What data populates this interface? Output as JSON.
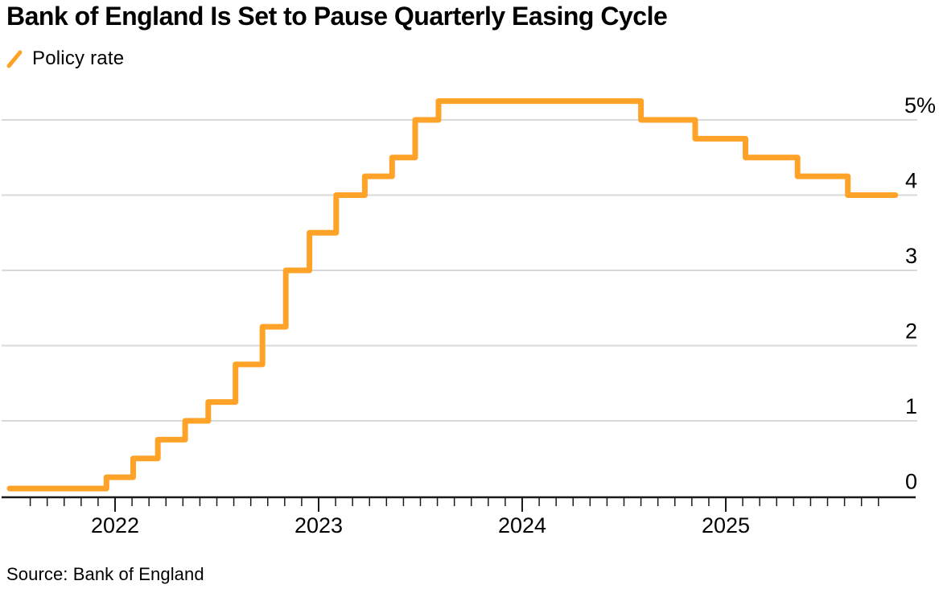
{
  "title": "Bank of England Is Set to Pause Quarterly Easing Cycle",
  "legend": {
    "label": "Policy rate"
  },
  "source": "Source: Bank of England",
  "colors": {
    "line": "#FFA228",
    "grid": "#D9D9D9",
    "axis": "#1A1A1A",
    "text": "#000000"
  },
  "chart_data": {
    "type": "line",
    "style": "step-after",
    "title": "Bank of England Is Set to Pause Quarterly Easing Cycle",
    "xlabel": "",
    "ylabel": "",
    "unit": "%",
    "ylim": [
      0,
      5.5
    ],
    "grid": "horizontal",
    "legend_position": "top-left",
    "yticks": [
      {
        "value": 0,
        "label": "0"
      },
      {
        "value": 1,
        "label": "1"
      },
      {
        "value": 2,
        "label": "2"
      },
      {
        "value": 3,
        "label": "3"
      },
      {
        "value": 4,
        "label": "4"
      },
      {
        "value": 5,
        "label": "5%"
      }
    ],
    "year_ticks": [
      {
        "year": 2022,
        "label": "2022"
      },
      {
        "year": 2023,
        "label": "2023"
      },
      {
        "year": 2024,
        "label": "2024"
      },
      {
        "year": 2025,
        "label": "2025"
      }
    ],
    "minor_ticks": {
      "interval": "monthly",
      "from": "2021-08-01",
      "to": "2025-10-01"
    },
    "series": [
      {
        "name": "Policy rate",
        "start": {
          "date": "2021-06-25",
          "value": 0.1
        },
        "points": [
          {
            "date": "2021-12-16",
            "value": 0.25
          },
          {
            "date": "2022-02-03",
            "value": 0.5
          },
          {
            "date": "2022-03-17",
            "value": 0.75
          },
          {
            "date": "2022-05-05",
            "value": 1.0
          },
          {
            "date": "2022-06-16",
            "value": 1.25
          },
          {
            "date": "2022-08-04",
            "value": 1.75
          },
          {
            "date": "2022-09-22",
            "value": 2.25
          },
          {
            "date": "2022-11-03",
            "value": 3.0
          },
          {
            "date": "2022-12-15",
            "value": 3.5
          },
          {
            "date": "2023-02-02",
            "value": 4.0
          },
          {
            "date": "2023-03-23",
            "value": 4.25
          },
          {
            "date": "2023-05-11",
            "value": 4.5
          },
          {
            "date": "2023-06-22",
            "value": 5.0
          },
          {
            "date": "2023-08-03",
            "value": 5.25
          },
          {
            "date": "2024-08-01",
            "value": 5.0
          },
          {
            "date": "2024-11-07",
            "value": 4.75
          },
          {
            "date": "2025-02-06",
            "value": 4.5
          },
          {
            "date": "2025-05-08",
            "value": 4.25
          },
          {
            "date": "2025-08-07",
            "value": 4.0
          }
        ],
        "end_date": "2025-11-01"
      }
    ]
  }
}
